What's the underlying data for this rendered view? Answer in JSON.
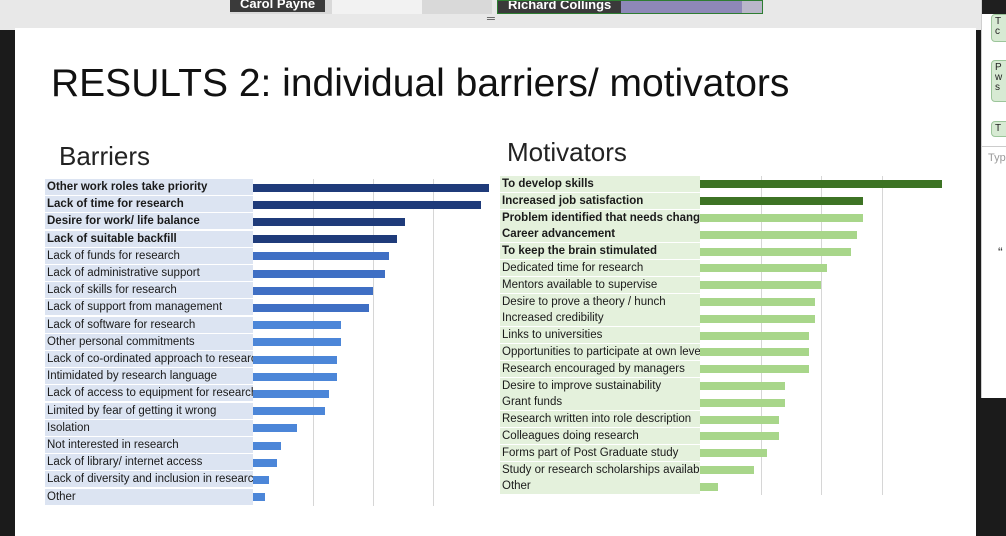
{
  "participants": [
    {
      "name": "Carol Payne"
    },
    {
      "name": "Richard Collings"
    }
  ],
  "slide": {
    "title": "RESULTS 2: individual barriers/ motivators"
  },
  "chart_data": [
    {
      "type": "bar",
      "orientation": "horizontal",
      "title": "Barriers",
      "categories": [
        "Other work roles take priority",
        "Lack of time for research",
        "Desire for work/ life balance",
        "Lack of suitable backfill",
        "Lack of funds for research",
        "Lack of administrative support",
        "Lack of skills for research",
        "Lack of support from management",
        "Lack of software for research",
        "Other personal commitments",
        "Lack of co-ordinated approach to research",
        "Intimidated by research language",
        "Lack of access to equipment for research",
        "Limited by fear of getting it wrong",
        "Isolation",
        "Not interested in research",
        "Lack of library/ internet access",
        "Lack of diversity and inclusion in research",
        "Other"
      ],
      "values": [
        59,
        57,
        38,
        36,
        34,
        33,
        30,
        29,
        22,
        22,
        21,
        21,
        19,
        18,
        11,
        7,
        6,
        4,
        3
      ],
      "bold": [
        true,
        true,
        true,
        true,
        false,
        false,
        false,
        false,
        false,
        false,
        false,
        false,
        false,
        false,
        false,
        false,
        false,
        false,
        false
      ],
      "xlim": [
        0,
        60
      ],
      "grid": true,
      "colors": {
        "dark": "#1f3b7a",
        "mid": "#3f6fc4",
        "light": "#4c86d8",
        "label_bg": "#dce4f2"
      }
    },
    {
      "type": "bar",
      "orientation": "horizontal",
      "title": "Motivators",
      "categories": [
        "To develop skills",
        "Increased job satisfaction",
        "Problem identified that needs changing",
        "Career advancement",
        "To keep the brain stimulated",
        "Dedicated time for research",
        "Mentors available to supervise",
        "Desire to prove a theory / hunch",
        "Increased credibility",
        "Links to universities",
        "Opportunities to participate at own level",
        "Research encouraged by managers",
        "Desire to improve sustainability",
        "Grant funds",
        "Research written into role description",
        "Colleagues doing research",
        "Forms part of Post Graduate study",
        "Study or research scholarships available",
        "Other"
      ],
      "values": [
        40,
        27,
        27,
        26,
        25,
        21,
        20,
        19,
        19,
        18,
        18,
        18,
        14,
        14,
        13,
        13,
        11,
        9,
        3
      ],
      "bold": [
        true,
        true,
        true,
        true,
        true,
        false,
        false,
        false,
        false,
        false,
        false,
        false,
        false,
        false,
        false,
        false,
        false,
        false,
        false
      ],
      "xlim": [
        0,
        40
      ],
      "grid": true,
      "colors": {
        "dark": "#3d7324",
        "light": "#a8d68a",
        "label_bg": "#e4f1dc"
      }
    }
  ],
  "chat": {
    "messages": [
      "T\nc",
      "P\nw\ns",
      "T"
    ],
    "input_placeholder": "Typ",
    "quote_glyph": "“"
  }
}
